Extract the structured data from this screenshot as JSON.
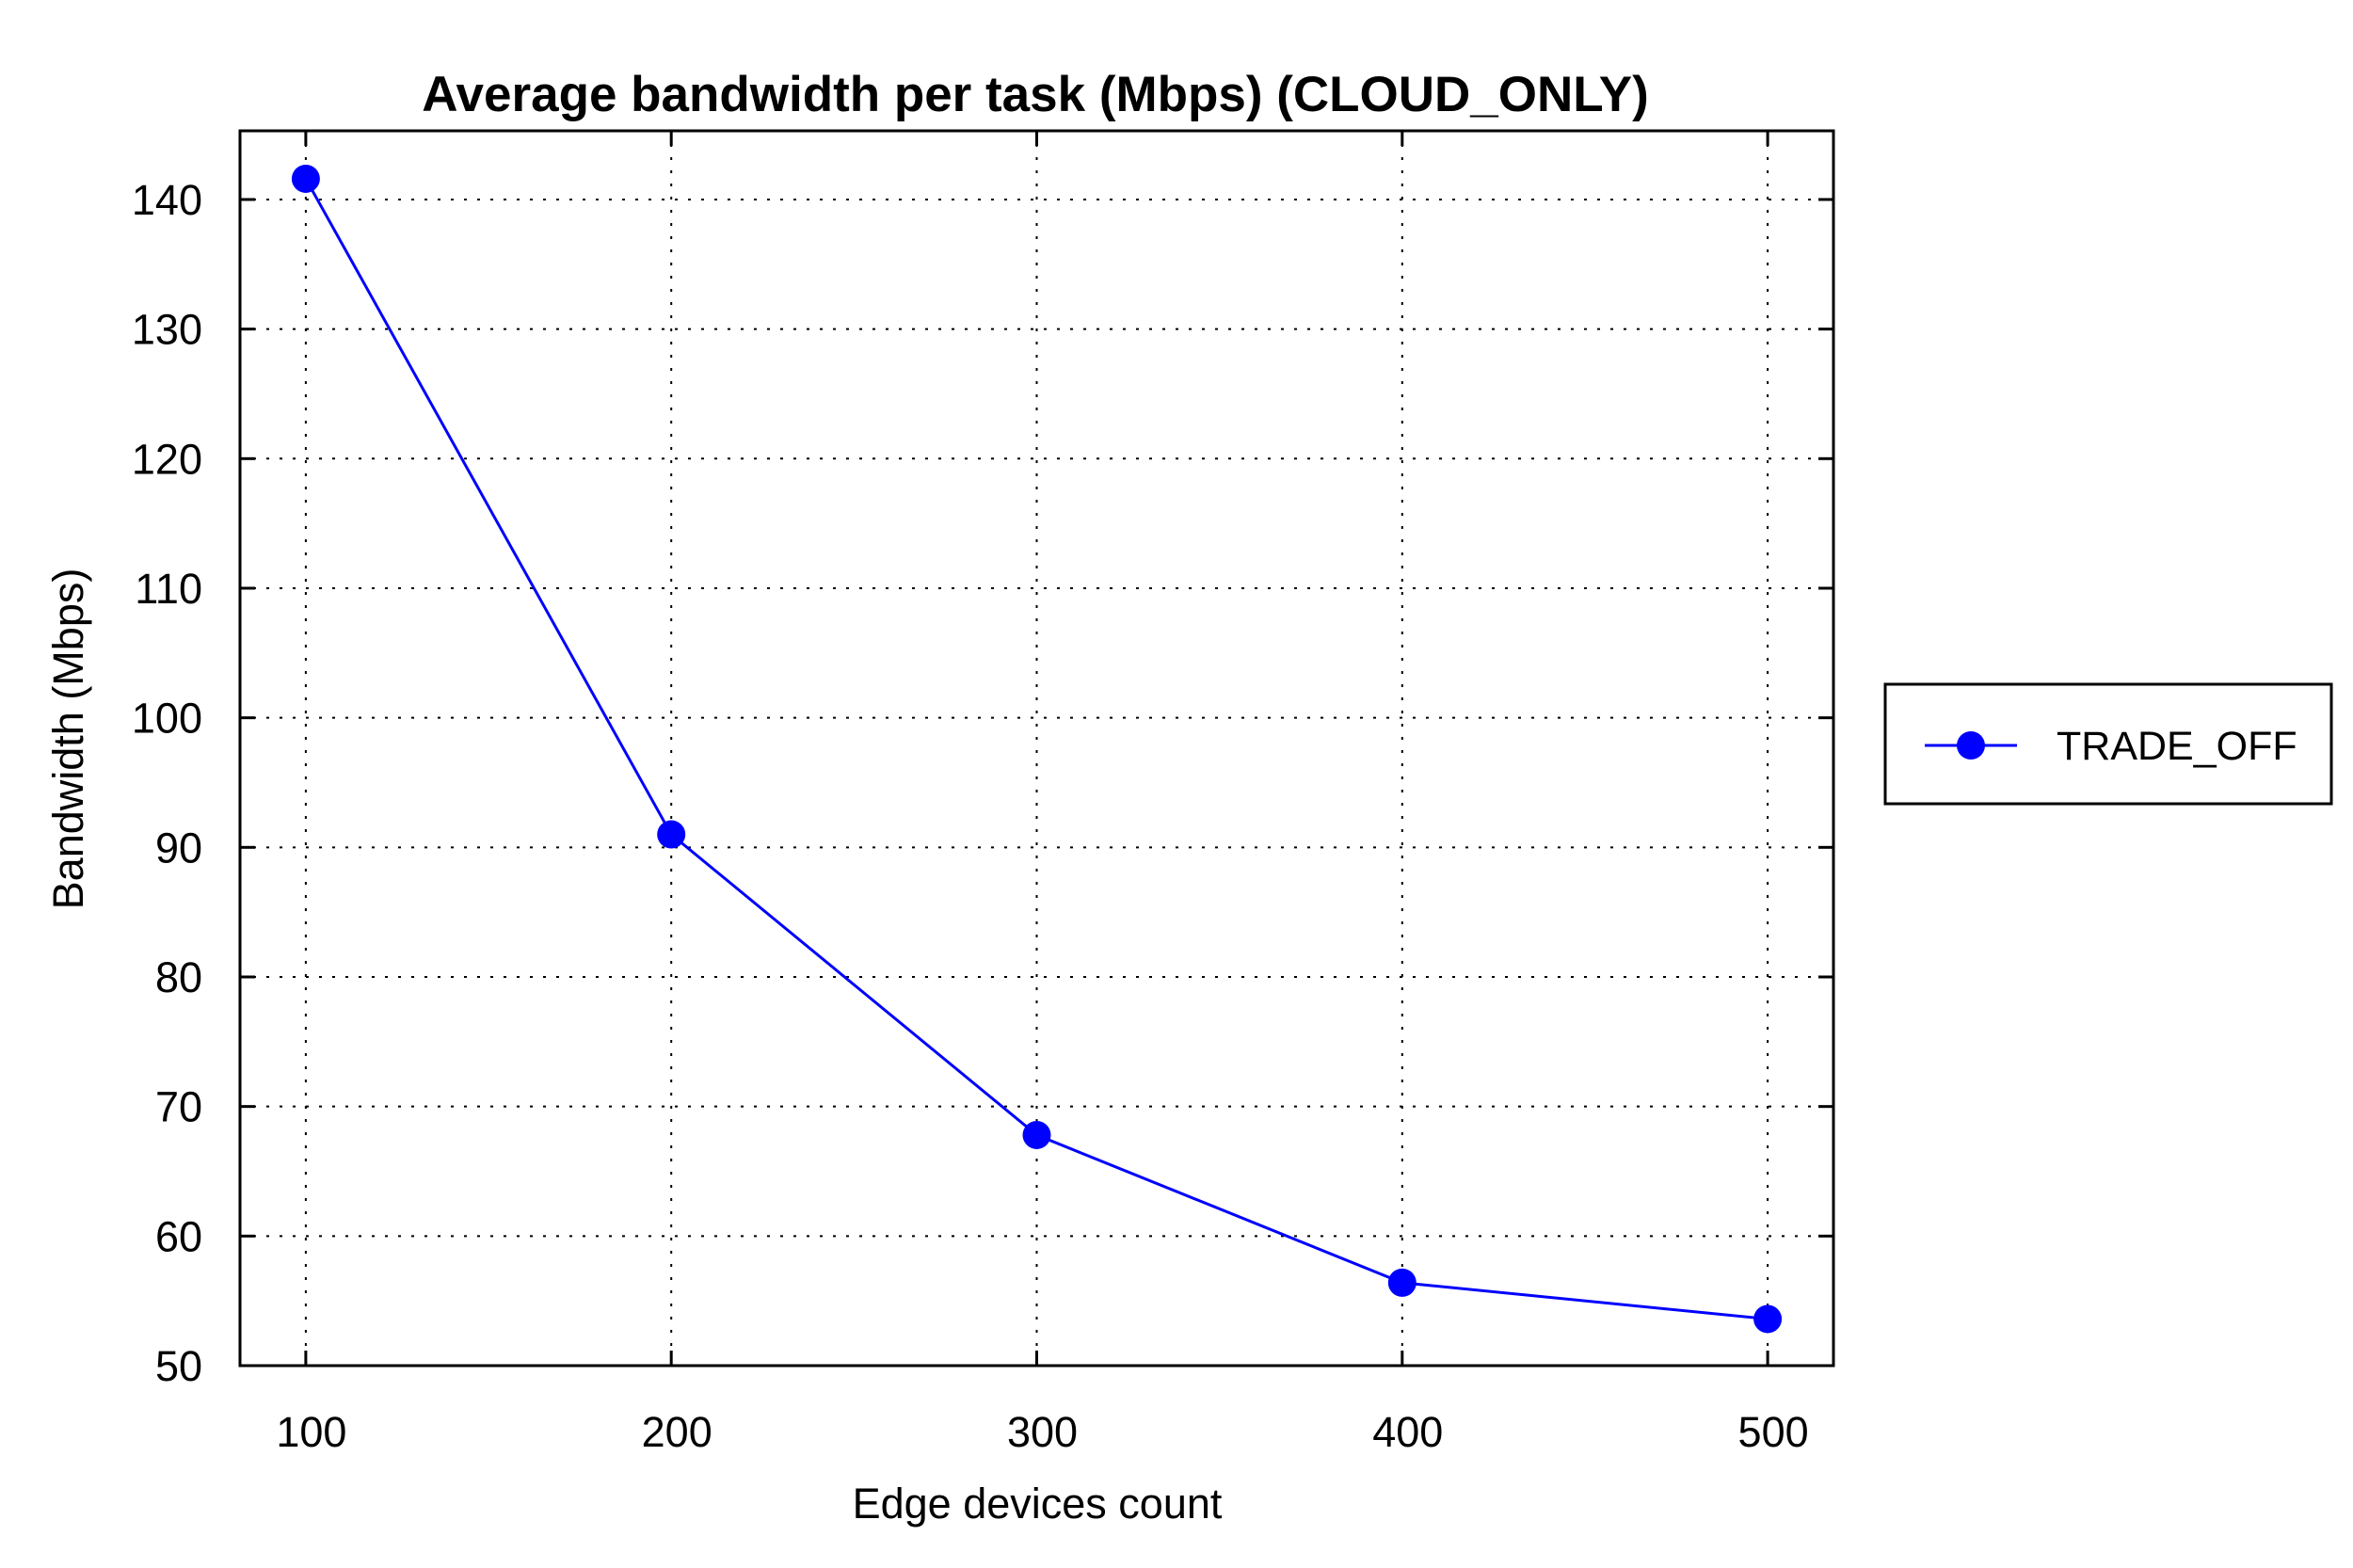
{
  "chart_data": {
    "type": "line",
    "title": "Average bandwidth per task (Mbps) (CLOUD_ONLY)",
    "xlabel": "Edge devices count",
    "ylabel": "Bandwidth (Mbps)",
    "x": [
      100,
      200,
      300,
      400,
      500
    ],
    "x_tick_labels": [
      "100",
      "200",
      "300",
      "400",
      "500"
    ],
    "y_ticks": [
      50,
      60,
      70,
      80,
      90,
      100,
      110,
      120,
      130,
      140
    ],
    "y_tick_labels": [
      "50",
      "60",
      "70",
      "80",
      "90",
      "100",
      "110",
      "120",
      "130",
      "140"
    ],
    "xlim": [
      82,
      518
    ],
    "ylim": [
      50,
      145.3
    ],
    "grid": true,
    "legend_position": "outside right",
    "series": [
      {
        "name": "TRADE_OFF",
        "color": "#0000ff",
        "marker": "circle",
        "values": [
          141.6,
          91.0,
          67.8,
          56.4,
          53.6
        ]
      }
    ]
  }
}
